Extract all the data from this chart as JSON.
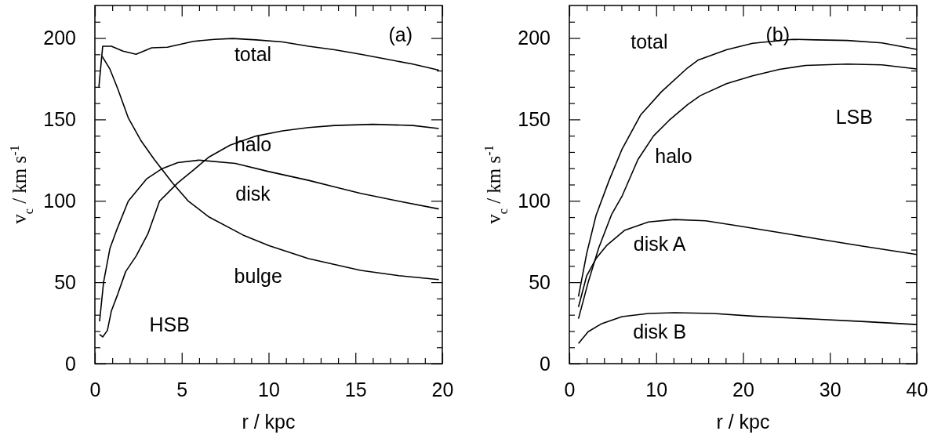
{
  "chart_data": [
    {
      "type": "line",
      "xlabel": "r / kpc",
      "ylabel": "v$_{c}$ / km s$^{-1}$",
      "xlim": [
        0,
        20
      ],
      "ylim": [
        0,
        220
      ],
      "xticks": [
        0,
        {
          "value": 1,
          "label": null
        },
        {
          "value": 2,
          "label": null
        },
        {
          "value": 3,
          "label": null
        },
        {
          "value": 4,
          "label": null
        },
        5,
        {
          "value": 6,
          "label": null
        },
        {
          "value": 7,
          "label": null
        },
        {
          "value": 8,
          "label": null
        },
        {
          "value": 9,
          "label": null
        },
        10,
        {
          "value": 11,
          "label": null
        },
        {
          "value": 12,
          "label": null
        },
        {
          "value": 13,
          "label": null
        },
        {
          "value": 14,
          "label": null
        },
        15,
        {
          "value": 16,
          "label": null
        },
        {
          "value": 17,
          "label": null
        },
        {
          "value": 18,
          "label": null
        },
        {
          "value": 19,
          "label": null
        },
        20
      ],
      "yticks": [
        0,
        {
          "value": 10,
          "label": null
        },
        {
          "value": 20,
          "label": null
        },
        {
          "value": 30,
          "label": null
        },
        {
          "value": 40,
          "label": null
        },
        50,
        {
          "value": 60,
          "label": null
        },
        {
          "value": 70,
          "label": null
        },
        {
          "value": 80,
          "label": null
        },
        {
          "value": 90,
          "label": null
        },
        100,
        {
          "value": 110,
          "label": null
        },
        {
          "value": 120,
          "label": null
        },
        {
          "value": 130,
          "label": null
        },
        {
          "value": 140,
          "label": null
        },
        150,
        {
          "value": 160,
          "label": null
        },
        {
          "value": 170,
          "label": null
        },
        {
          "value": 180,
          "label": null
        },
        {
          "value": 190,
          "label": null
        },
        200,
        {
          "value": 210,
          "label": null
        }
      ],
      "series": [
        {
          "name": "total",
          "color": "#000000",
          "x": [
            0.23,
            0.45,
            0.95,
            1.62,
            2.37,
            3.27,
            4.17,
            5.68,
            6.88,
            7.93,
            9.28,
            10.8,
            12.3,
            13.8,
            15.3,
            16.8,
            18.3,
            19.8
          ],
          "values": [
            170,
            195,
            195,
            192,
            190,
            194,
            194.4,
            198,
            199.2,
            199.7,
            198.9,
            197.6,
            195,
            192.8,
            190,
            187,
            184,
            180.3
          ]
        },
        {
          "name": "halo",
          "color": "#000000",
          "x": [
            0.27,
            0.45,
            0.72,
            0.95,
            1.32,
            1.77,
            2.37,
            3.05,
            3.72,
            4.77,
            5.68,
            6.58,
            7.78,
            9.28,
            10.8,
            12.3,
            13.8,
            16.0,
            18.3,
            19.8
          ],
          "values": [
            18,
            16.4,
            20.4,
            32.4,
            42.8,
            56.5,
            66,
            79.7,
            99.8,
            111,
            119,
            127,
            134.2,
            139.8,
            143,
            145,
            146.3,
            147,
            146.3,
            144.4
          ]
        },
        {
          "name": "disk",
          "color": "#000000",
          "x": [
            0.27,
            0.5,
            0.87,
            1.25,
            1.92,
            2.97,
            3.87,
            4.77,
            5.98,
            8.08,
            10.0,
            12.3,
            13.8,
            15.3,
            17.5,
            19.8
          ],
          "values": [
            26,
            50,
            70.9,
            82,
            99.8,
            113.4,
            119.8,
            123.5,
            125,
            123,
            118,
            112.6,
            108.6,
            104.6,
            99.8,
            95
          ]
        },
        {
          "name": "bulge",
          "color": "#000000",
          "x": [
            0.42,
            0.87,
            1.32,
            1.92,
            2.67,
            3.42,
            4.47,
            5.38,
            6.58,
            8.53,
            10.03,
            12.3,
            15.3,
            17.5,
            19.8
          ],
          "values": [
            188.8,
            180.8,
            168.7,
            151,
            136.7,
            125.4,
            111,
            99.8,
            90,
            79,
            72.5,
            64.5,
            57.3,
            54,
            51.6
          ]
        }
      ],
      "annotations": [
        "HSB",
        "(a)"
      ]
    },
    {
      "type": "line",
      "xlabel": "r / kpc",
      "ylabel": "v$_{c}$ / km s$^{-1}$",
      "xlim": [
        0,
        40
      ],
      "ylim": [
        0,
        220
      ],
      "xticks": [
        0,
        {
          "value": 2,
          "label": null
        },
        {
          "value": 4,
          "label": null
        },
        {
          "value": 6,
          "label": null
        },
        {
          "value": 8,
          "label": null
        },
        10,
        {
          "value": 12,
          "label": null
        },
        {
          "value": 14,
          "label": null
        },
        {
          "value": 16,
          "label": null
        },
        {
          "value": 18,
          "label": null
        },
        20,
        {
          "value": 22,
          "label": null
        },
        {
          "value": 24,
          "label": null
        },
        {
          "value": 26,
          "label": null
        },
        {
          "value": 28,
          "label": null
        },
        30,
        {
          "value": 32,
          "label": null
        },
        {
          "value": 34,
          "label": null
        },
        {
          "value": 36,
          "label": null
        },
        {
          "value": 38,
          "label": null
        },
        40
      ],
      "yticks": [
        0,
        {
          "value": 10,
          "label": null
        },
        {
          "value": 20,
          "label": null
        },
        {
          "value": 30,
          "label": null
        },
        {
          "value": 40,
          "label": null
        },
        50,
        {
          "value": 60,
          "label": null
        },
        {
          "value": 70,
          "label": null
        },
        {
          "value": 80,
          "label": null
        },
        {
          "value": 90,
          "label": null
        },
        100,
        {
          "value": 110,
          "label": null
        },
        {
          "value": 120,
          "label": null
        },
        {
          "value": 130,
          "label": null
        },
        {
          "value": 140,
          "label": null
        },
        150,
        {
          "value": 160,
          "label": null
        },
        {
          "value": 170,
          "label": null
        },
        {
          "value": 180,
          "label": null
        },
        {
          "value": 190,
          "label": null
        },
        200,
        {
          "value": 210,
          "label": null
        }
      ],
      "series": [
        {
          "name": "total",
          "color": "#000000",
          "x": [
            1.05,
            2.0,
            3.07,
            4.58,
            6.08,
            8.2,
            10.6,
            13.6,
            14.8,
            18.1,
            21.1,
            25.7,
            28.4,
            32,
            36,
            40
          ],
          "values": [
            41.2,
            67.7,
            91,
            112.6,
            131.9,
            152.7,
            167,
            181.6,
            186.4,
            192.8,
            196.8,
            199.2,
            198.9,
            198.5,
            197,
            193
          ]
        },
        {
          "name": "halo",
          "color": "#000000",
          "x": [
            1.05,
            2.17,
            3.37,
            4.88,
            6.08,
            7.9,
            9.7,
            11.5,
            13.6,
            15.1,
            18.1,
            21.1,
            24.2,
            27.2,
            32,
            36,
            40
          ],
          "values": [
            27.6,
            50,
            70.9,
            91.8,
            103,
            125.4,
            139.9,
            149.5,
            159,
            164.7,
            172,
            176.8,
            180.8,
            183.2,
            184,
            183.5,
            181
          ]
        },
        {
          "name": "disk A",
          "color": "#000000",
          "x": [
            1.05,
            2.0,
            3.07,
            4.28,
            6.39,
            9.1,
            12.1,
            15.7,
            19.6,
            24.2,
            28.4,
            34,
            40
          ],
          "values": [
            34.8,
            54,
            64.5,
            72.5,
            82,
            87,
            88.5,
            87.7,
            84.5,
            80.5,
            76.8,
            72,
            67
          ]
        },
        {
          "name": "disk B",
          "color": "#000000",
          "x": [
            1.05,
            2.17,
            3.67,
            6.08,
            9.1,
            12.1,
            16.6,
            21.1,
            28.4,
            34,
            40
          ],
          "values": [
            12.4,
            19.6,
            24.4,
            28.9,
            30.8,
            31.3,
            30.8,
            29.2,
            27.3,
            25.8,
            24
          ]
        }
      ],
      "annotations": [
        "LSB",
        "(b)"
      ]
    }
  ]
}
